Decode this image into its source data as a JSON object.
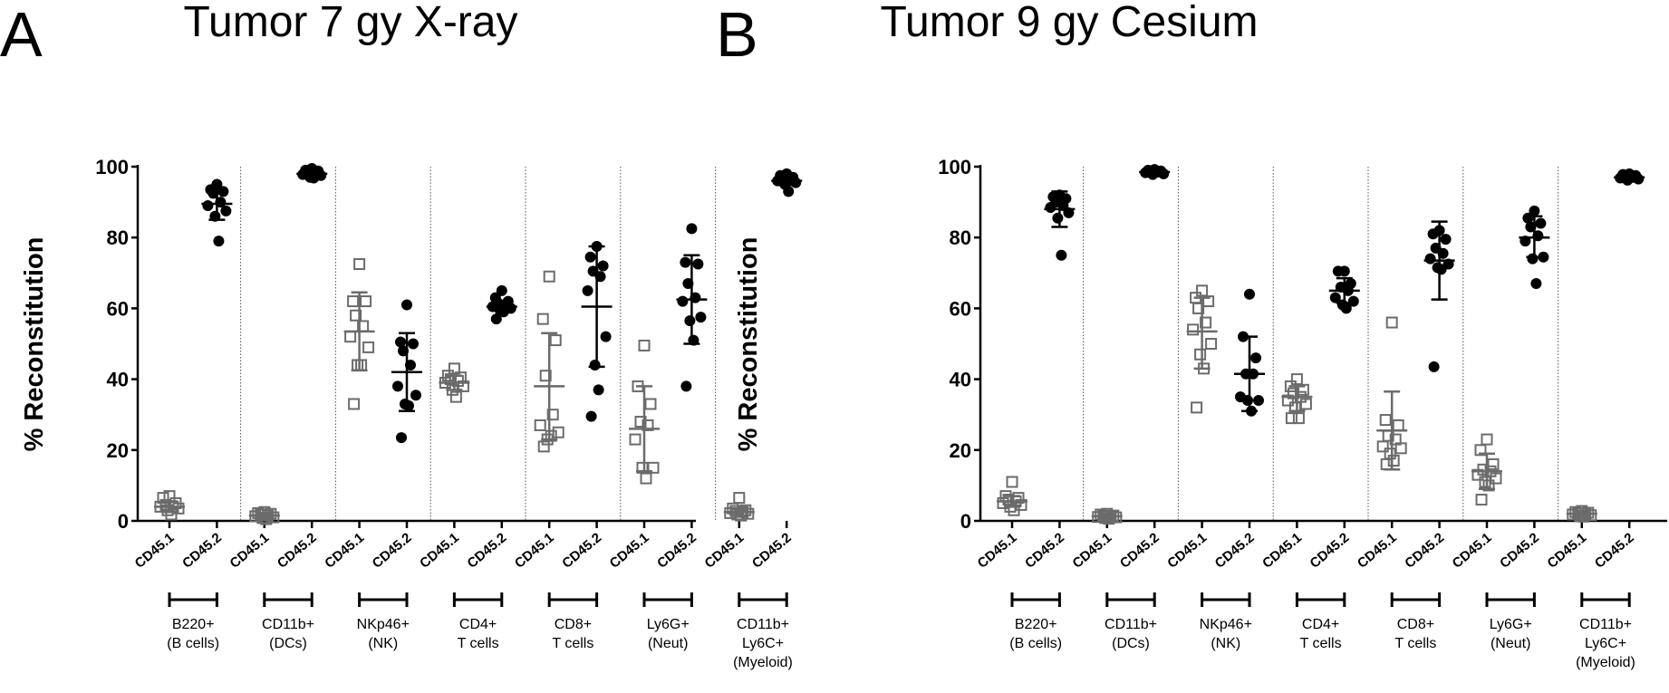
{
  "colors": {
    "cd45_1": "#6b6b6b",
    "cd45_2": "#000000",
    "axis": "#000000",
    "separator": "#555555"
  },
  "chart_data": [
    {
      "type": "scatter",
      "panel_letter": "A",
      "title": "Tumor 7 gy X-ray",
      "xlabel": "",
      "ylabel": "% Reconstitution",
      "ylim": [
        0,
        100
      ],
      "yticks": [
        "0",
        "20",
        "40",
        "60",
        "80",
        "100"
      ],
      "grid": false,
      "legend": "none",
      "groups": [
        {
          "label_lines": [
            "B220+",
            "(B cells)"
          ],
          "series": [
            {
              "name": "CD45.1",
              "marker": "open-square",
              "mean": 4.0,
              "sd_low": 2.5,
              "sd_high": 5.5,
              "values": [
                7,
                6.5,
                5,
                4.5,
                4,
                4,
                3.5,
                3,
                1.8
              ]
            },
            {
              "name": "CD45.2",
              "marker": "filled-circle",
              "mean": 89.5,
              "sd_low": 85,
              "sd_high": 94,
              "values": [
                95,
                93.5,
                93,
                92.5,
                90,
                89,
                87.5,
                86,
                79
              ]
            }
          ]
        },
        {
          "label_lines": [
            "CD11b+",
            "(DCs)"
          ],
          "series": [
            {
              "name": "CD45.1",
              "marker": "open-square",
              "mean": 1.5,
              "sd_low": 0.8,
              "sd_high": 2.2,
              "values": [
                2.5,
                2.2,
                2,
                1.8,
                1.5,
                1.3,
                1.0,
                0.8,
                0.5
              ]
            },
            {
              "name": "CD45.2",
              "marker": "filled-circle",
              "mean": 98,
              "sd_low": 97,
              "sd_high": 99,
              "values": [
                99.5,
                99,
                98.8,
                98.5,
                98,
                97.8,
                97.5,
                97,
                96.8
              ]
            }
          ]
        },
        {
          "label_lines": [
            "NKp46+",
            "(NK)"
          ],
          "series": [
            {
              "name": "CD45.1",
              "marker": "open-square",
              "mean": 53.5,
              "sd_low": 42.5,
              "sd_high": 64.5,
              "values": [
                72.5,
                62,
                62,
                58,
                55,
                52,
                49,
                44,
                44,
                33
              ]
            },
            {
              "name": "CD45.2",
              "marker": "filled-circle",
              "mean": 42,
              "sd_low": 31,
              "sd_high": 53,
              "values": [
                61,
                50.5,
                50,
                48,
                44,
                38,
                35.5,
                33,
                32.5,
                23.5
              ]
            }
          ]
        },
        {
          "label_lines": [
            "CD4+",
            "T cells"
          ],
          "series": [
            {
              "name": "CD45.1",
              "marker": "open-square",
              "mean": 39,
              "sd_low": 37,
              "sd_high": 41,
              "values": [
                43,
                41,
                40.5,
                40,
                39.5,
                39,
                38,
                37,
                35
              ]
            },
            {
              "name": "CD45.2",
              "marker": "filled-circle",
              "mean": 60.5,
              "sd_low": 59.5,
              "sd_high": 61.5,
              "values": [
                65,
                63,
                62,
                61.5,
                61,
                60.5,
                60,
                59.5,
                59,
                57
              ]
            }
          ]
        },
        {
          "label_lines": [
            "CD8+",
            "T cells"
          ],
          "series": [
            {
              "name": "CD45.1",
              "marker": "open-square",
              "mean": 38,
              "sd_low": 23,
              "sd_high": 53,
              "values": [
                69,
                57,
                51,
                41,
                30,
                27,
                25,
                23,
                24,
                21
              ]
            },
            {
              "name": "CD45.2",
              "marker": "filled-circle",
              "mean": 60.5,
              "sd_low": 43.5,
              "sd_high": 77.5,
              "values": [
                77.5,
                74.5,
                72,
                70.5,
                69,
                65,
                52,
                44,
                37,
                29.5
              ]
            }
          ]
        },
        {
          "label_lines": [
            "Ly6G+",
            "(Neut)"
          ],
          "series": [
            {
              "name": "CD45.1",
              "marker": "open-square",
              "mean": 26,
              "sd_low": 14,
              "sd_high": 38,
              "values": [
                49.5,
                38,
                33,
                28,
                27,
                23,
                15,
                15,
                12
              ]
            },
            {
              "name": "CD45.2",
              "marker": "filled-circle",
              "mean": 62.5,
              "sd_low": 50,
              "sd_high": 75,
              "values": [
                82.5,
                73,
                72.5,
                67,
                63,
                62,
                57.5,
                56.5,
                51,
                38
              ]
            }
          ]
        },
        {
          "label_lines": [
            "CD11b+",
            "Ly6C+",
            "(Myeloid)"
          ],
          "series": [
            {
              "name": "CD45.1",
              "marker": "open-square",
              "mean": 2.5,
              "sd_low": 1.5,
              "sd_high": 3.5,
              "values": [
                6.5,
                3.5,
                3,
                2.8,
                2.5,
                2.2,
                2,
                1.8,
                1.5
              ]
            },
            {
              "name": "CD45.2",
              "marker": "filled-circle",
              "mean": 96,
              "sd_low": 95.5,
              "sd_high": 96.8,
              "values": [
                98,
                97.5,
                97,
                96.5,
                96,
                96,
                95.5,
                95,
                93
              ]
            }
          ]
        }
      ]
    },
    {
      "type": "scatter",
      "panel_letter": "B",
      "title": "Tumor 9 gy Cesium",
      "xlabel": "",
      "ylabel": "% Reconstitution",
      "ylim": [
        0,
        100
      ],
      "yticks": [
        "0",
        "20",
        "40",
        "60",
        "80",
        "100"
      ],
      "grid": false,
      "legend": "none",
      "groups": [
        {
          "label_lines": [
            "B220+",
            "(B cells)"
          ],
          "series": [
            {
              "name": "CD45.1",
              "marker": "open-square",
              "mean": 5.5,
              "sd_low": 4,
              "sd_high": 7,
              "values": [
                11,
                7,
                6.5,
                6,
                5.5,
                5,
                4.5,
                4,
                3
              ]
            },
            {
              "name": "CD45.2",
              "marker": "filled-circle",
              "mean": 88,
              "sd_low": 83,
              "sd_high": 93,
              "values": [
                92,
                91.5,
                91,
                90,
                89,
                88.5,
                87,
                85.5,
                75
              ]
            }
          ]
        },
        {
          "label_lines": [
            "CD11b+",
            "(DCs)"
          ],
          "series": [
            {
              "name": "CD45.1",
              "marker": "open-square",
              "mean": 1.3,
              "sd_low": 0.8,
              "sd_high": 1.8,
              "values": [
                2,
                1.8,
                1.5,
                1.4,
                1.3,
                1.1,
                1.0,
                0.8,
                0.6
              ]
            },
            {
              "name": "CD45.2",
              "marker": "filled-circle",
              "mean": 98.5,
              "sd_low": 98,
              "sd_high": 99,
              "values": [
                99.2,
                99,
                98.8,
                98.6,
                98.5,
                98.3,
                98,
                97.8
              ]
            }
          ]
        },
        {
          "label_lines": [
            "NKp46+",
            "(NK)"
          ],
          "series": [
            {
              "name": "CD45.1",
              "marker": "open-square",
              "mean": 53.5,
              "sd_low": 43,
              "sd_high": 63,
              "values": [
                65,
                63,
                62,
                60,
                56,
                54,
                50,
                47,
                43,
                32
              ]
            },
            {
              "name": "CD45.2",
              "marker": "filled-circle",
              "mean": 41.5,
              "sd_low": 31,
              "sd_high": 52,
              "values": [
                64,
                52,
                46,
                41.5,
                41.5,
                35,
                34,
                34,
                31
              ]
            }
          ]
        },
        {
          "label_lines": [
            "CD4+",
            "T cells"
          ],
          "series": [
            {
              "name": "CD45.1",
              "marker": "open-square",
              "mean": 35,
              "sd_low": 31,
              "sd_high": 38,
              "values": [
                40,
                38,
                37,
                36,
                35,
                34,
                33,
                32,
                29,
                29
              ]
            },
            {
              "name": "CD45.2",
              "marker": "filled-circle",
              "mean": 65,
              "sd_low": 61.5,
              "sd_high": 68.5,
              "values": [
                70.5,
                70.5,
                67,
                66,
                65,
                63,
                62,
                61,
                60
              ]
            }
          ]
        },
        {
          "label_lines": [
            "CD8+",
            "T cells"
          ],
          "series": [
            {
              "name": "CD45.1",
              "marker": "open-square",
              "mean": 25.5,
              "sd_low": 14.5,
              "sd_high": 36.5,
              "values": [
                56,
                28.5,
                27,
                24,
                23,
                21,
                20.5,
                19,
                17,
                16
              ]
            },
            {
              "name": "CD45.2",
              "marker": "filled-circle",
              "mean": 73.5,
              "sd_low": 62.5,
              "sd_high": 84.5,
              "values": [
                82,
                81,
                79.5,
                77,
                75.5,
                74,
                72.5,
                71.5,
                71,
                43.5
              ]
            }
          ]
        },
        {
          "label_lines": [
            "Ly6G+",
            "(Neut)"
          ],
          "series": [
            {
              "name": "CD45.1",
              "marker": "open-square",
              "mean": 14,
              "sd_low": 9,
              "sd_high": 19,
              "values": [
                23,
                20,
                16,
                14.5,
                14,
                13,
                12,
                11,
                10,
                6
              ]
            },
            {
              "name": "CD45.2",
              "marker": "filled-circle",
              "mean": 80,
              "sd_low": 74.5,
              "sd_high": 86,
              "values": [
                87.5,
                85.5,
                84,
                83,
                80.5,
                79,
                74.5,
                74,
                67
              ]
            }
          ]
        },
        {
          "label_lines": [
            "CD11b+",
            "Ly6C+",
            "(Myeloid)"
          ],
          "series": [
            {
              "name": "CD45.1",
              "marker": "open-square",
              "mean": 2,
              "sd_low": 1.3,
              "sd_high": 2.7,
              "values": [
                2.8,
                2.5,
                2.3,
                2.1,
                2,
                1.8,
                1.6,
                1.4,
                1.2
              ]
            },
            {
              "name": "CD45.2",
              "marker": "filled-circle",
              "mean": 97,
              "sd_low": 96.5,
              "sd_high": 97.5,
              "values": [
                98,
                97.8,
                97.5,
                97.2,
                97,
                96.8,
                96.5,
                96.2
              ]
            }
          ]
        }
      ]
    }
  ]
}
